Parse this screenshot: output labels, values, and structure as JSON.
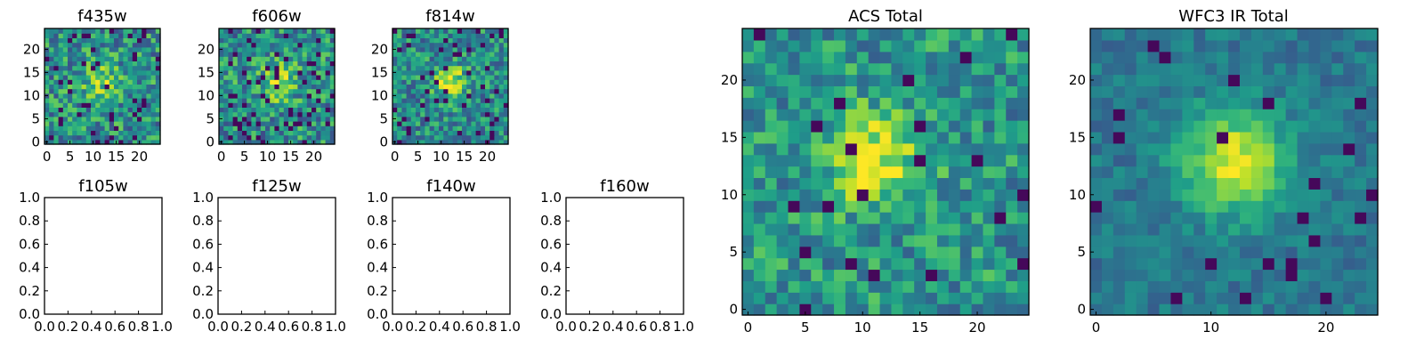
{
  "chart_data": [
    {
      "type": "heatmap",
      "title": "f435w",
      "cmap": "viridis",
      "grid": false,
      "size": 25,
      "xlim": [
        -0.5,
        24.5
      ],
      "ylim": [
        -0.5,
        24.5
      ],
      "xticks": [
        "0",
        "5",
        "10",
        "15",
        "20"
      ],
      "yticks": [
        "0",
        "5",
        "10",
        "15",
        "20"
      ]
    },
    {
      "type": "heatmap",
      "title": "f606w",
      "cmap": "viridis",
      "grid": false,
      "size": 25,
      "xlim": [
        -0.5,
        24.5
      ],
      "ylim": [
        -0.5,
        24.5
      ],
      "xticks": [
        "0",
        "5",
        "10",
        "15",
        "20"
      ],
      "yticks": [
        "0",
        "5",
        "10",
        "15",
        "20"
      ]
    },
    {
      "type": "heatmap",
      "title": "f814w",
      "cmap": "viridis",
      "grid": false,
      "size": 25,
      "xlim": [
        -0.5,
        24.5
      ],
      "ylim": [
        -0.5,
        24.5
      ],
      "xticks": [
        "0",
        "5",
        "10",
        "15",
        "20"
      ],
      "yticks": [
        "0",
        "5",
        "10",
        "15",
        "20"
      ]
    },
    {
      "type": "empty",
      "title": "f105w",
      "xlim": [
        0,
        1
      ],
      "ylim": [
        0,
        1
      ],
      "xticks": [
        "0.0",
        "0.2",
        "0.4",
        "0.6",
        "0.8",
        "1.0"
      ],
      "yticks": [
        "0.0",
        "0.2",
        "0.4",
        "0.6",
        "0.8",
        "1.0"
      ]
    },
    {
      "type": "empty",
      "title": "f125w",
      "xlim": [
        0,
        1
      ],
      "ylim": [
        0,
        1
      ],
      "xticks": [
        "0.0",
        "0.2",
        "0.4",
        "0.6",
        "0.8",
        "1.0"
      ],
      "yticks": [
        "0.0",
        "0.2",
        "0.4",
        "0.6",
        "0.8",
        "1.0"
      ]
    },
    {
      "type": "empty",
      "title": "f140w",
      "xlim": [
        0,
        1
      ],
      "ylim": [
        0,
        1
      ],
      "xticks": [
        "0.0",
        "0.2",
        "0.4",
        "0.6",
        "0.8",
        "1.0"
      ],
      "yticks": [
        "0.0",
        "0.2",
        "0.4",
        "0.6",
        "0.8",
        "1.0"
      ]
    },
    {
      "type": "empty",
      "title": "f160w",
      "xlim": [
        0,
        1
      ],
      "ylim": [
        0,
        1
      ],
      "xticks": [
        "0.0",
        "0.2",
        "0.4",
        "0.6",
        "0.8",
        "1.0"
      ],
      "yticks": [
        "0.0",
        "0.2",
        "0.4",
        "0.6",
        "0.8",
        "1.0"
      ]
    },
    {
      "type": "heatmap",
      "title": "ACS Total",
      "cmap": "viridis",
      "grid": false,
      "size": 25,
      "xlim": [
        -0.5,
        24.5
      ],
      "ylim": [
        -0.5,
        24.5
      ],
      "xticks": [
        "0",
        "5",
        "10",
        "15",
        "20"
      ],
      "yticks": [
        "0",
        "5",
        "10",
        "15",
        "20"
      ]
    },
    {
      "type": "heatmap",
      "title": "WFC3 IR Total",
      "cmap": "viridis",
      "grid": false,
      "size": 25,
      "xlim": [
        -0.5,
        24.5
      ],
      "ylim": [
        -0.5,
        24.5
      ],
      "xticks": [
        "0",
        "10",
        "20"
      ],
      "yticks": [
        "0",
        "5",
        "10",
        "15",
        "20"
      ]
    }
  ]
}
